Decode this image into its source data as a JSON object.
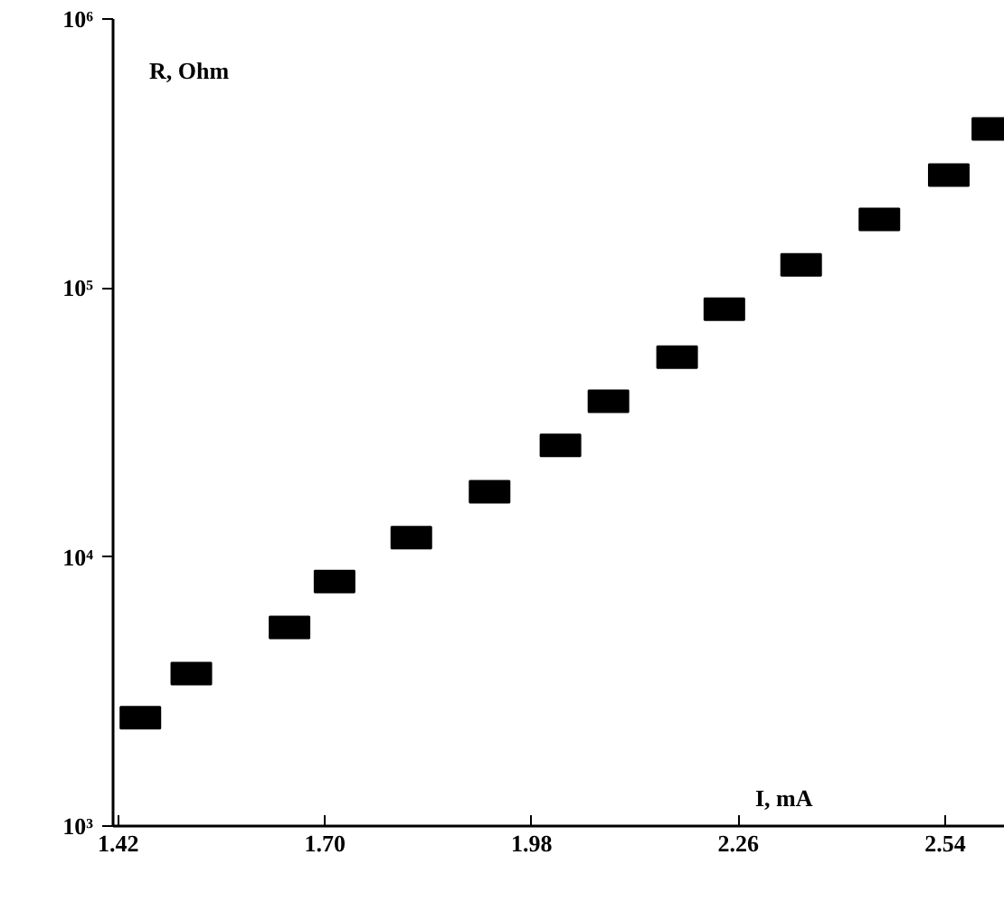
{
  "chart_data": {
    "type": "scatter",
    "xlabel": "I, mA",
    "ylabel": "R, Ohm",
    "x": [
      1.45,
      1.519,
      1.652,
      1.713,
      1.817,
      1.923,
      2.019,
      2.084,
      2.177,
      2.241,
      2.345,
      2.451,
      2.545,
      2.604
    ],
    "series": [
      {
        "color": "#000000",
        "values": [
          2530,
          3690,
          5470,
          8110,
          11800,
          17500,
          26000,
          37900,
          55300,
          83400,
          122000,
          180000,
          263000,
          390000
        ]
      }
    ],
    "log": "y",
    "marker": "square",
    "grid": false,
    "xlim": [
      1.413,
      2.621
    ],
    "ylim": [
      1000,
      1000000
    ],
    "xticks": [
      1.42,
      {
        "value": 1.7,
        "label": "1.70"
      },
      {
        "value": 1.98,
        "label": "1.98"
      },
      2.26,
      2.54
    ],
    "yticks": [
      {
        "value": 1000,
        "label": "10³"
      },
      {
        "value": 10000,
        "label": "10⁴"
      },
      {
        "value": 100000,
        "label": "10⁵"
      },
      {
        "value": 1000000,
        "label": "10⁶"
      }
    ]
  }
}
